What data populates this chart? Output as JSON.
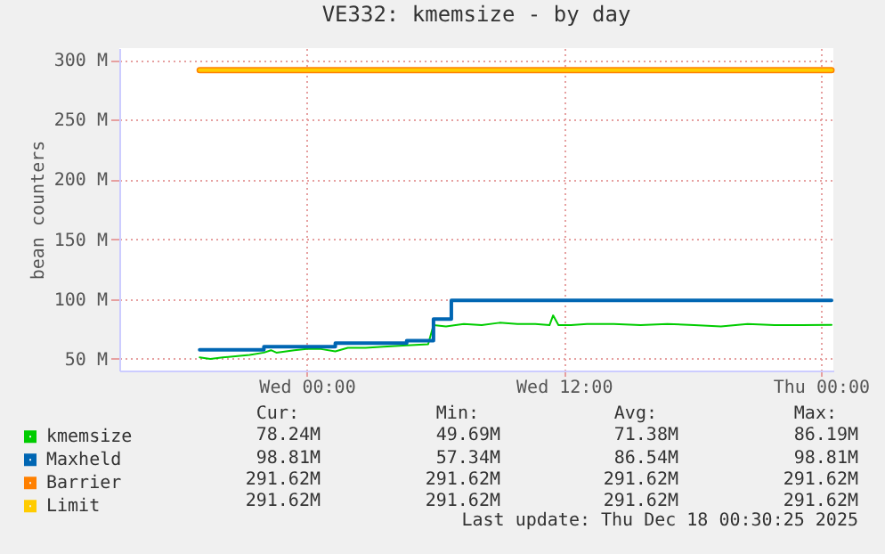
{
  "chart_data": {
    "type": "line",
    "title": "VE332: kmemsize - by day",
    "ylabel": "bean counters",
    "xlim": [
      "2025-12-16T15:15",
      "2025-12-18T00:35"
    ],
    "xticks": [
      {
        "value": "2025-12-17T00:00",
        "label": "Wed 00:00"
      },
      {
        "value": "2025-12-17T12:00",
        "label": "Wed 12:00"
      },
      {
        "value": "2025-12-18T00:00",
        "label": "Thu 00:00"
      }
    ],
    "ylim": [
      40,
      310
    ],
    "yticks": [
      {
        "value": 50,
        "label": "50 M"
      },
      {
        "value": 100,
        "label": "100 M"
      },
      {
        "value": 150,
        "label": "150 M"
      },
      {
        "value": 200,
        "label": "200 M"
      },
      {
        "value": 250,
        "label": "250 M"
      },
      {
        "value": 300,
        "label": "300 M"
      }
    ],
    "grid": true,
    "legend": "bottom left",
    "series": [
      {
        "name": "kmemsize",
        "color": "#00cc00",
        "x": [
          "2025-12-16T19:00",
          "2025-12-16T19:30",
          "2025-12-16T20:05",
          "2025-12-16T20:40",
          "2025-12-16T21:20",
          "2025-12-16T22:00",
          "2025-12-16T22:20",
          "2025-12-16T22:35",
          "2025-12-16T23:25",
          "2025-12-17T00:00",
          "2025-12-17T00:40",
          "2025-12-17T01:20",
          "2025-12-17T01:55",
          "2025-12-17T02:45",
          "2025-12-17T03:35",
          "2025-12-17T04:40",
          "2025-12-17T05:40",
          "2025-12-17T05:55",
          "2025-12-17T06:30",
          "2025-12-17T07:20",
          "2025-12-17T08:10",
          "2025-12-17T09:00",
          "2025-12-17T09:50",
          "2025-12-17T10:40",
          "2025-12-17T11:20",
          "2025-12-17T11:30",
          "2025-12-17T11:45",
          "2025-12-17T12:20",
          "2025-12-17T13:05",
          "2025-12-17T14:20",
          "2025-12-17T15:35",
          "2025-12-17T16:50",
          "2025-12-17T18:05",
          "2025-12-17T19:20",
          "2025-12-17T20:35",
          "2025-12-17T21:50",
          "2025-12-17T23:05",
          "2025-12-18T00:30"
        ],
        "values": [
          51,
          49.69,
          51,
          52,
          53,
          55,
          57,
          55,
          57,
          58,
          58,
          56,
          59,
          59,
          60,
          61,
          62,
          78,
          77,
          79,
          78,
          80,
          79,
          79,
          78,
          86.19,
          78,
          78,
          79,
          79,
          78,
          79,
          78,
          77,
          79,
          78,
          78,
          78.24
        ]
      },
      {
        "name": "Maxheld",
        "color": "#0066b3",
        "type": "step",
        "x": [
          "2025-12-16T19:00",
          "2025-12-16T22:00",
          "2025-12-17T01:20",
          "2025-12-17T04:40",
          "2025-12-17T05:55",
          "2025-12-17T06:45",
          "2025-12-18T00:30"
        ],
        "values": [
          57.34,
          60,
          63,
          65,
          83,
          98.81,
          98.81
        ]
      },
      {
        "name": "Barrier",
        "color": "#ff8000",
        "x": [
          "2025-12-16T19:00",
          "2025-12-18T00:30"
        ],
        "values": [
          291.62,
          291.62
        ]
      },
      {
        "name": "Limit",
        "color": "#ffcc00",
        "x": [
          "2025-12-16T19:00",
          "2025-12-18T00:30"
        ],
        "values": [
          291.62,
          291.62
        ]
      }
    ],
    "annotations": [
      "Cur:",
      "Min:",
      "Avg:",
      "Max:",
      "78.24M",
      "49.69M",
      "71.38M",
      "86.19M",
      "98.81M",
      "57.34M",
      "86.54M",
      "98.81M",
      "291.62M",
      "291.62M",
      "291.62M",
      "291.62M",
      "291.62M",
      "291.62M",
      "291.62M",
      "291.62M",
      "Last update: Thu Dec 18 00:30:25 2025"
    ]
  }
}
